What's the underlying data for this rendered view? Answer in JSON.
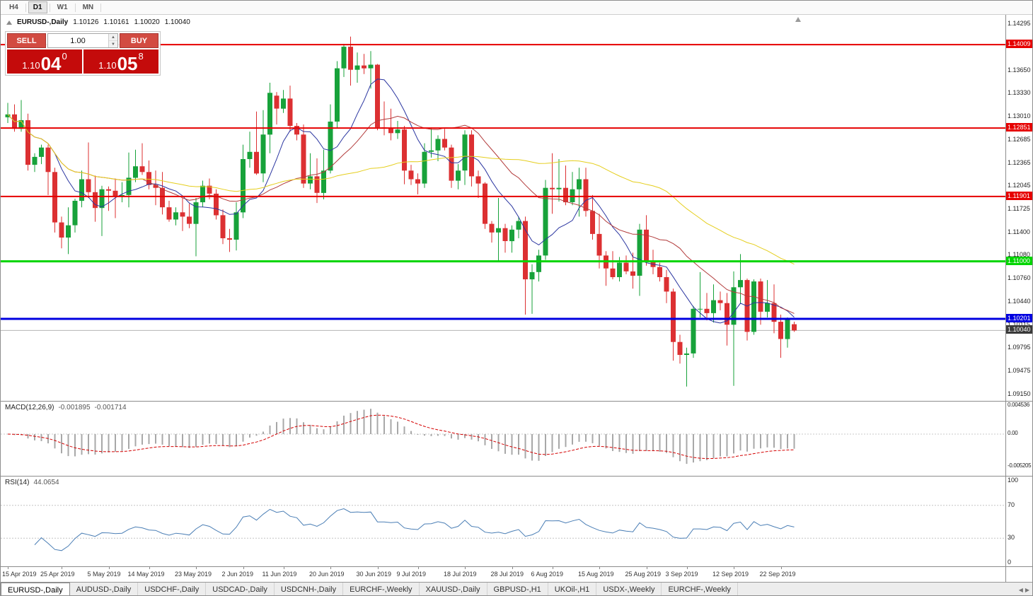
{
  "toolbar": {
    "timeframes": [
      "H4",
      "D1",
      "W1",
      "MN"
    ],
    "active": "D1"
  },
  "header": {
    "symbol": "EURUSD-,Daily",
    "open": "1.10126",
    "high": "1.10161",
    "low": "1.10020",
    "close": "1.10040"
  },
  "trade_panel": {
    "sell_label": "SELL",
    "buy_label": "BUY",
    "volume": "1.00",
    "sell_price": {
      "prefix": "1.10",
      "big": "04",
      "sup": "0"
    },
    "buy_price": {
      "prefix": "1.10",
      "big": "05",
      "sup": "8"
    }
  },
  "colors": {
    "bull": "#17a23a",
    "bear": "#dc3032",
    "macd_bar": "#a8a8a8",
    "macd_signal": "#d40000",
    "rsi_line": "#4a7eb5",
    "current_price_tag": "#3a3a3a",
    "hline_red": "#e60000",
    "hline_green": "#00d500",
    "hline_blue": "#0000e0"
  },
  "chart_data": {
    "type": "candlestick",
    "title": "EURUSD-,Daily",
    "current_price": {
      "value": 1.1004,
      "label": "1.10040"
    },
    "y_axis": {
      "range": [
        1.0906,
        1.1442
      ],
      "ticks": [
        "1.14295",
        "1.13980",
        "1.13650",
        "1.13330",
        "1.13010",
        "1.12685",
        "1.12365",
        "1.12045",
        "1.11725",
        "1.11400",
        "1.11080",
        "1.10760",
        "1.10440",
        "1.10115",
        "1.09795",
        "1.09475",
        "1.09150"
      ]
    },
    "x_axis": {
      "labels": [
        "15 Apr 2019",
        "25 Apr 2019",
        "5 May 2019",
        "14 May 2019",
        "23 May 2019",
        "2 Jun 2019",
        "11 Jun 2019",
        "20 Jun 2019",
        "30 Jun 2019",
        "9 Jul 2019",
        "18 Jul 2019",
        "28 Jul 2019",
        "6 Aug 2019",
        "15 Aug 2019",
        "25 Aug 2019",
        "3 Sep 2019",
        "12 Sep 2019",
        "22 Sep 2019"
      ],
      "candle_indices": [
        0,
        8,
        15,
        21,
        28,
        35,
        41,
        48,
        55,
        61,
        68,
        75,
        81,
        88,
        95,
        101,
        108,
        115
      ]
    },
    "candles": [
      [
        1.13,
        1.132,
        1.1292,
        1.1304
      ],
      [
        1.1304,
        1.1318,
        1.128,
        1.1284
      ],
      [
        1.1284,
        1.1324,
        1.128,
        1.1296
      ],
      [
        1.1296,
        1.1305,
        1.1226,
        1.1234
      ],
      [
        1.1234,
        1.125,
        1.1224,
        1.1245
      ],
      [
        1.1245,
        1.1262,
        1.1235,
        1.1258
      ],
      [
        1.1258,
        1.1262,
        1.1192,
        1.1224
      ],
      [
        1.1224,
        1.123,
        1.114,
        1.1154
      ],
      [
        1.1154,
        1.1162,
        1.1118,
        1.1133
      ],
      [
        1.1133,
        1.1175,
        1.111,
        1.115
      ],
      [
        1.115,
        1.1187,
        1.114,
        1.1184
      ],
      [
        1.1184,
        1.1226,
        1.1175,
        1.1214
      ],
      [
        1.1214,
        1.1265,
        1.1188,
        1.1196
      ],
      [
        1.1196,
        1.1219,
        1.1155,
        1.1174
      ],
      [
        1.1174,
        1.1205,
        1.1135,
        1.12
      ],
      [
        1.12,
        1.1204,
        1.117,
        1.1198
      ],
      [
        1.1198,
        1.1215,
        1.116,
        1.119
      ],
      [
        1.119,
        1.121,
        1.1182,
        1.1192
      ],
      [
        1.1192,
        1.1251,
        1.1175,
        1.1216
      ],
      [
        1.1216,
        1.1255,
        1.121,
        1.1232
      ],
      [
        1.1232,
        1.1264,
        1.122,
        1.1224
      ],
      [
        1.1224,
        1.124,
        1.12,
        1.1206
      ],
      [
        1.1206,
        1.1226,
        1.1178,
        1.1202
      ],
      [
        1.1202,
        1.1224,
        1.1165,
        1.1175
      ],
      [
        1.1175,
        1.1184,
        1.1155,
        1.1158
      ],
      [
        1.1158,
        1.1175,
        1.115,
        1.1168
      ],
      [
        1.1168,
        1.1188,
        1.1142,
        1.1162
      ],
      [
        1.1162,
        1.118,
        1.1146,
        1.1152
      ],
      [
        1.1152,
        1.1188,
        1.1107,
        1.1182
      ],
      [
        1.1182,
        1.1212,
        1.1175,
        1.1205
      ],
      [
        1.1205,
        1.1215,
        1.1186,
        1.1194
      ],
      [
        1.1194,
        1.12,
        1.1158,
        1.1164
      ],
      [
        1.1164,
        1.1172,
        1.1124,
        1.1132
      ],
      [
        1.1132,
        1.1145,
        1.1113,
        1.113
      ],
      [
        1.113,
        1.1182,
        1.1115,
        1.1168
      ],
      [
        1.1168,
        1.1262,
        1.116,
        1.1242
      ],
      [
        1.1242,
        1.128,
        1.123,
        1.1252
      ],
      [
        1.1252,
        1.1308,
        1.122,
        1.1222
      ],
      [
        1.1222,
        1.131,
        1.121,
        1.1276
      ],
      [
        1.1276,
        1.1348,
        1.125,
        1.1334
      ],
      [
        1.133,
        1.1335,
        1.129,
        1.1312
      ],
      [
        1.1312,
        1.1338,
        1.1306,
        1.1326
      ],
      [
        1.1326,
        1.1344,
        1.128,
        1.1288
      ],
      [
        1.1288,
        1.1292,
        1.1268,
        1.1276
      ],
      [
        1.1276,
        1.129,
        1.1202,
        1.1208
      ],
      [
        1.1208,
        1.125,
        1.12,
        1.1218
      ],
      [
        1.1218,
        1.1243,
        1.1181,
        1.1195
      ],
      [
        1.1195,
        1.1255,
        1.1186,
        1.1226
      ],
      [
        1.1226,
        1.1318,
        1.1222,
        1.1294
      ],
      [
        1.1294,
        1.1378,
        1.1285,
        1.1368
      ],
      [
        1.1368,
        1.1402,
        1.1356,
        1.1398
      ],
      [
        1.1398,
        1.1412,
        1.1344,
        1.1366
      ],
      [
        1.1366,
        1.139,
        1.1348,
        1.1372
      ],
      [
        1.1372,
        1.1388,
        1.136,
        1.1368
      ],
      [
        1.1368,
        1.1392,
        1.134,
        1.1373
      ],
      [
        1.1373,
        1.1374,
        1.1282,
        1.1286
      ],
      [
        1.1286,
        1.1322,
        1.1275,
        1.1285
      ],
      [
        1.1285,
        1.1312,
        1.1268,
        1.1278
      ],
      [
        1.1278,
        1.1295,
        1.127,
        1.1283
      ],
      [
        1.1283,
        1.1288,
        1.1207,
        1.1226
      ],
      [
        1.1226,
        1.1234,
        1.1206,
        1.1214
      ],
      [
        1.1214,
        1.1222,
        1.1193,
        1.1208
      ],
      [
        1.1208,
        1.1264,
        1.1202,
        1.1252
      ],
      [
        1.1252,
        1.1286,
        1.1244,
        1.1254
      ],
      [
        1.1254,
        1.1275,
        1.1239,
        1.127
      ],
      [
        1.127,
        1.1284,
        1.1254,
        1.1258
      ],
      [
        1.1258,
        1.1262,
        1.1202,
        1.1212
      ],
      [
        1.1212,
        1.1235,
        1.12,
        1.1226
      ],
      [
        1.1226,
        1.1282,
        1.1206,
        1.1276
      ],
      [
        1.1276,
        1.1282,
        1.1204,
        1.1218
      ],
      [
        1.1218,
        1.1226,
        1.1188,
        1.1208
      ],
      [
        1.1208,
        1.121,
        1.1145,
        1.1152
      ],
      [
        1.1152,
        1.1156,
        1.1126,
        1.114
      ],
      [
        1.114,
        1.1188,
        1.1101,
        1.1146
      ],
      [
        1.1146,
        1.1152,
        1.1112,
        1.1128
      ],
      [
        1.1128,
        1.115,
        1.1112,
        1.1144
      ],
      [
        1.1144,
        1.1162,
        1.1132,
        1.1156
      ],
      [
        1.1156,
        1.1162,
        1.1026,
        1.1075
      ],
      [
        1.1075,
        1.1096,
        1.1027,
        1.1085
      ],
      [
        1.1085,
        1.1116,
        1.1072,
        1.1108
      ],
      [
        1.1108,
        1.1213,
        1.1102,
        1.1202
      ],
      [
        1.1202,
        1.125,
        1.1166,
        1.12
      ],
      [
        1.12,
        1.1242,
        1.1183,
        1.1202
      ],
      [
        1.1202,
        1.1233,
        1.1178,
        1.1182
      ],
      [
        1.1182,
        1.1224,
        1.1178,
        1.12
      ],
      [
        1.12,
        1.123,
        1.1162,
        1.1214
      ],
      [
        1.1214,
        1.123,
        1.1162,
        1.117
      ],
      [
        1.117,
        1.1192,
        1.113,
        1.1138
      ],
      [
        1.1138,
        1.1166,
        1.109,
        1.1108
      ],
      [
        1.1108,
        1.1114,
        1.1066,
        1.109
      ],
      [
        1.109,
        1.1114,
        1.1075,
        1.1078
      ],
      [
        1.1078,
        1.1106,
        1.1072,
        1.1098
      ],
      [
        1.1098,
        1.1108,
        1.1082,
        1.1086
      ],
      [
        1.1086,
        1.1112,
        1.1062,
        1.108
      ],
      [
        1.108,
        1.1152,
        1.1052,
        1.1144
      ],
      [
        1.1144,
        1.1164,
        1.1094,
        1.11
      ],
      [
        1.11,
        1.1116,
        1.1082,
        1.1092
      ],
      [
        1.1092,
        1.1098,
        1.1072,
        1.1078
      ],
      [
        1.1078,
        1.1088,
        1.1042,
        1.1058
      ],
      [
        1.1058,
        1.1062,
        1.0962,
        1.0988
      ],
      [
        1.0988,
        1.0998,
        1.0958,
        1.097
      ],
      [
        1.097,
        1.098,
        1.0926,
        1.0972
      ],
      [
        1.0972,
        1.1038,
        1.0966,
        1.1034
      ],
      [
        1.1034,
        1.1085,
        1.1022,
        1.1034
      ],
      [
        1.1034,
        1.1056,
        1.1018,
        1.1028
      ],
      [
        1.1028,
        1.1068,
        1.1015,
        1.1046
      ],
      [
        1.1046,
        1.1058,
        1.1032,
        1.1042
      ],
      [
        1.1042,
        1.1056,
        1.0983,
        1.1012
      ],
      [
        1.1012,
        1.1086,
        1.0927,
        1.1064
      ],
      [
        1.1064,
        1.111,
        1.1042,
        1.1074
      ],
      [
        1.1074,
        1.1076,
        1.099,
        1.1002
      ],
      [
        1.1002,
        1.1075,
        1.0998,
        1.1072
      ],
      [
        1.1072,
        1.1076,
        1.1012,
        1.103
      ],
      [
        1.103,
        1.1074,
        1.1022,
        1.1042
      ],
      [
        1.1042,
        1.1068,
        1.1,
        1.1016
      ],
      [
        1.1016,
        1.1026,
        1.0966,
        1.0992
      ],
      [
        1.0992,
        1.1022,
        1.098,
        1.102
      ],
      [
        1.10126,
        1.10161,
        1.1002,
        1.1004
      ]
    ],
    "overlays": {
      "horizontal_lines": [
        {
          "price": 1.14009,
          "label": "1.14009",
          "color": "#e60000",
          "thickness": 2
        },
        {
          "price": 1.12851,
          "label": "1.12851",
          "color": "#e60000",
          "thickness": 2
        },
        {
          "price": 1.11901,
          "label": "1.11901",
          "color": "#e60000",
          "thickness": 2
        },
        {
          "price": 1.11,
          "label": "1.11000",
          "color": "#00d500",
          "thickness": 3
        },
        {
          "price": 1.10201,
          "label": "1.10201",
          "color": "#0000e0",
          "thickness": 3
        }
      ],
      "moving_averages": [
        {
          "period": 8,
          "color": "#2a35a0"
        },
        {
          "period": 21,
          "color": "#b23b3b"
        },
        {
          "period": 50,
          "color": "#e5ce1d"
        }
      ]
    },
    "indicators": {
      "macd": {
        "name": "MACD(12,26,9)",
        "fast": 12,
        "slow": 26,
        "signal": 9,
        "value_main": "-0.001895",
        "value_signal": "-0.001714",
        "axis_ticks": [
          "0.004536",
          "0.00",
          "-0.005205"
        ]
      },
      "rsi": {
        "name": "RSI(14)",
        "period": 14,
        "value": "44.0654",
        "axis_ticks": [
          "100",
          "70",
          "30",
          "0"
        ],
        "levels": [
          70,
          30
        ]
      }
    }
  },
  "tabs": {
    "items": [
      "EURUSD-,Daily",
      "AUDUSD-,Daily",
      "USDCHF-,Daily",
      "USDCAD-,Daily",
      "USDCNH-,Daily",
      "EURCHF-,Weekly",
      "XAUUSD-,Daily",
      "GBPUSD-,H1",
      "UKOil-,H1",
      "USDX-,Weekly",
      "EURCHF-,Weekly"
    ],
    "active_index": 0
  }
}
